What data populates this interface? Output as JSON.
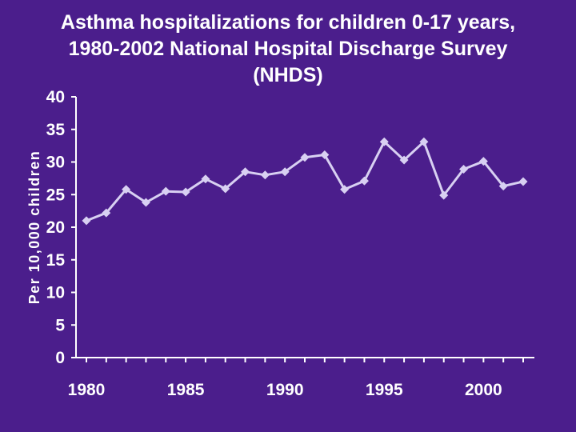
{
  "colors": {
    "background": "#4B1E8C",
    "text": "#FFFFFF",
    "axis": "#FFFFFF",
    "series": "#D8D0F2"
  },
  "chart_data": {
    "type": "line",
    "title": "Asthma hospitalizations for children 0-17 years, 1980-2002 National Hospital Discharge Survey (NHDS)",
    "xlabel": "",
    "ylabel": "Per 10,000 children",
    "xlim": [
      1980,
      2002
    ],
    "ylim": [
      0,
      40
    ],
    "yticks": [
      "0",
      "5",
      "10",
      "15",
      "20",
      "25",
      "30",
      "35",
      "40"
    ],
    "xticks": [
      "1980",
      "1985",
      "1990",
      "1995",
      "2000"
    ],
    "grid": false,
    "legend": "none",
    "series": [
      {
        "name": "Asthma hospitalizations",
        "x": [
          1980,
          1981,
          1982,
          1983,
          1984,
          1985,
          1986,
          1987,
          1988,
          1989,
          1990,
          1991,
          1992,
          1993,
          1994,
          1995,
          1996,
          1997,
          1998,
          1999,
          2000,
          2001,
          2002
        ],
        "values": [
          21.0,
          22.2,
          25.8,
          23.8,
          25.5,
          25.4,
          27.4,
          25.9,
          28.5,
          28.0,
          28.5,
          30.7,
          31.1,
          25.8,
          27.1,
          33.1,
          30.3,
          33.1,
          24.9,
          28.9,
          30.1,
          26.3,
          27.0
        ]
      }
    ]
  }
}
